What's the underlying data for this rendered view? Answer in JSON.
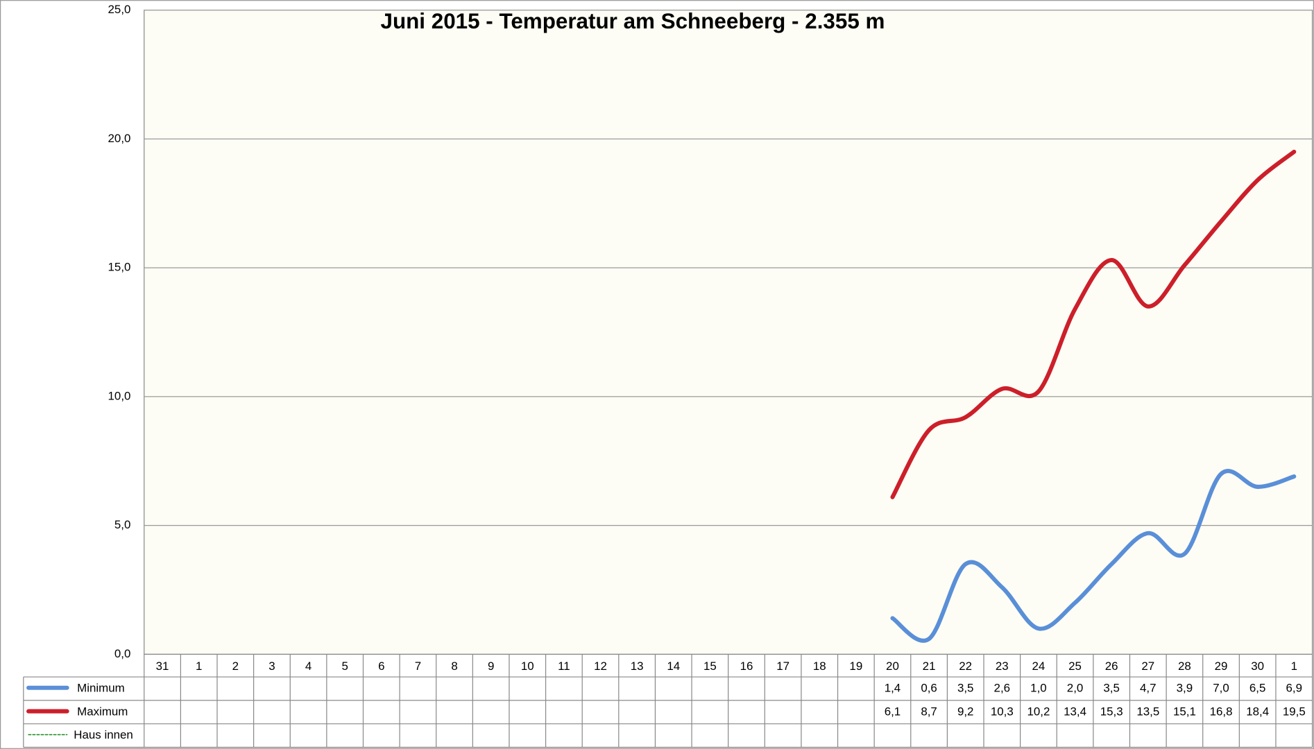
{
  "chart_data": {
    "type": "line",
    "title": "Juni 2015 - Temperatur am Schneeberg - 2.355 m",
    "categories": [
      "31",
      "1",
      "2",
      "3",
      "4",
      "5",
      "6",
      "7",
      "8",
      "9",
      "10",
      "11",
      "12",
      "13",
      "14",
      "15",
      "16",
      "17",
      "18",
      "19",
      "20",
      "21",
      "22",
      "23",
      "24",
      "25",
      "26",
      "27",
      "28",
      "29",
      "30",
      "1"
    ],
    "series": [
      {
        "name": "Minimum",
        "color": "#5a8fd8",
        "dashed": false,
        "values": [
          null,
          null,
          null,
          null,
          null,
          null,
          null,
          null,
          null,
          null,
          null,
          null,
          null,
          null,
          null,
          null,
          null,
          null,
          null,
          null,
          1.4,
          0.6,
          3.5,
          2.6,
          1.0,
          2.0,
          3.5,
          4.7,
          3.9,
          7.0,
          6.5,
          6.9
        ],
        "value_labels": [
          null,
          null,
          null,
          null,
          null,
          null,
          null,
          null,
          null,
          null,
          null,
          null,
          null,
          null,
          null,
          null,
          null,
          null,
          null,
          null,
          "1,4",
          "0,6",
          "3,5",
          "2,6",
          "1,0",
          "2,0",
          "3,5",
          "4,7",
          "3,9",
          "7,0",
          "6,5",
          "6,9"
        ]
      },
      {
        "name": "Maximum",
        "color": "#cc1f2a",
        "dashed": false,
        "values": [
          null,
          null,
          null,
          null,
          null,
          null,
          null,
          null,
          null,
          null,
          null,
          null,
          null,
          null,
          null,
          null,
          null,
          null,
          null,
          null,
          6.1,
          8.7,
          9.2,
          10.3,
          10.2,
          13.4,
          15.3,
          13.5,
          15.1,
          16.8,
          18.4,
          19.5
        ],
        "value_labels": [
          null,
          null,
          null,
          null,
          null,
          null,
          null,
          null,
          null,
          null,
          null,
          null,
          null,
          null,
          null,
          null,
          null,
          null,
          null,
          null,
          "6,1",
          "8,7",
          "9,2",
          "10,3",
          "10,2",
          "13,4",
          "15,3",
          "13,5",
          "15,1",
          "16,8",
          "18,4",
          "19,5"
        ]
      },
      {
        "name": "Haus innen",
        "color": "#1a8a1a",
        "dashed": true,
        "values": [
          null,
          null,
          null,
          null,
          null,
          null,
          null,
          null,
          null,
          null,
          null,
          null,
          null,
          null,
          null,
          null,
          null,
          null,
          null,
          null,
          null,
          null,
          null,
          null,
          null,
          null,
          null,
          null,
          null,
          null,
          null,
          null
        ]
      }
    ],
    "ylim": [
      0,
      25
    ],
    "yticks": [
      {
        "value": 0,
        "label": "0,0"
      },
      {
        "value": 5,
        "label": "5,0"
      },
      {
        "value": 10,
        "label": "10,0"
      },
      {
        "value": 15,
        "label": "15,0"
      },
      {
        "value": 20,
        "label": "20,0"
      },
      {
        "value": 25,
        "label": "25,0"
      }
    ],
    "grid": true,
    "smooth": true
  }
}
